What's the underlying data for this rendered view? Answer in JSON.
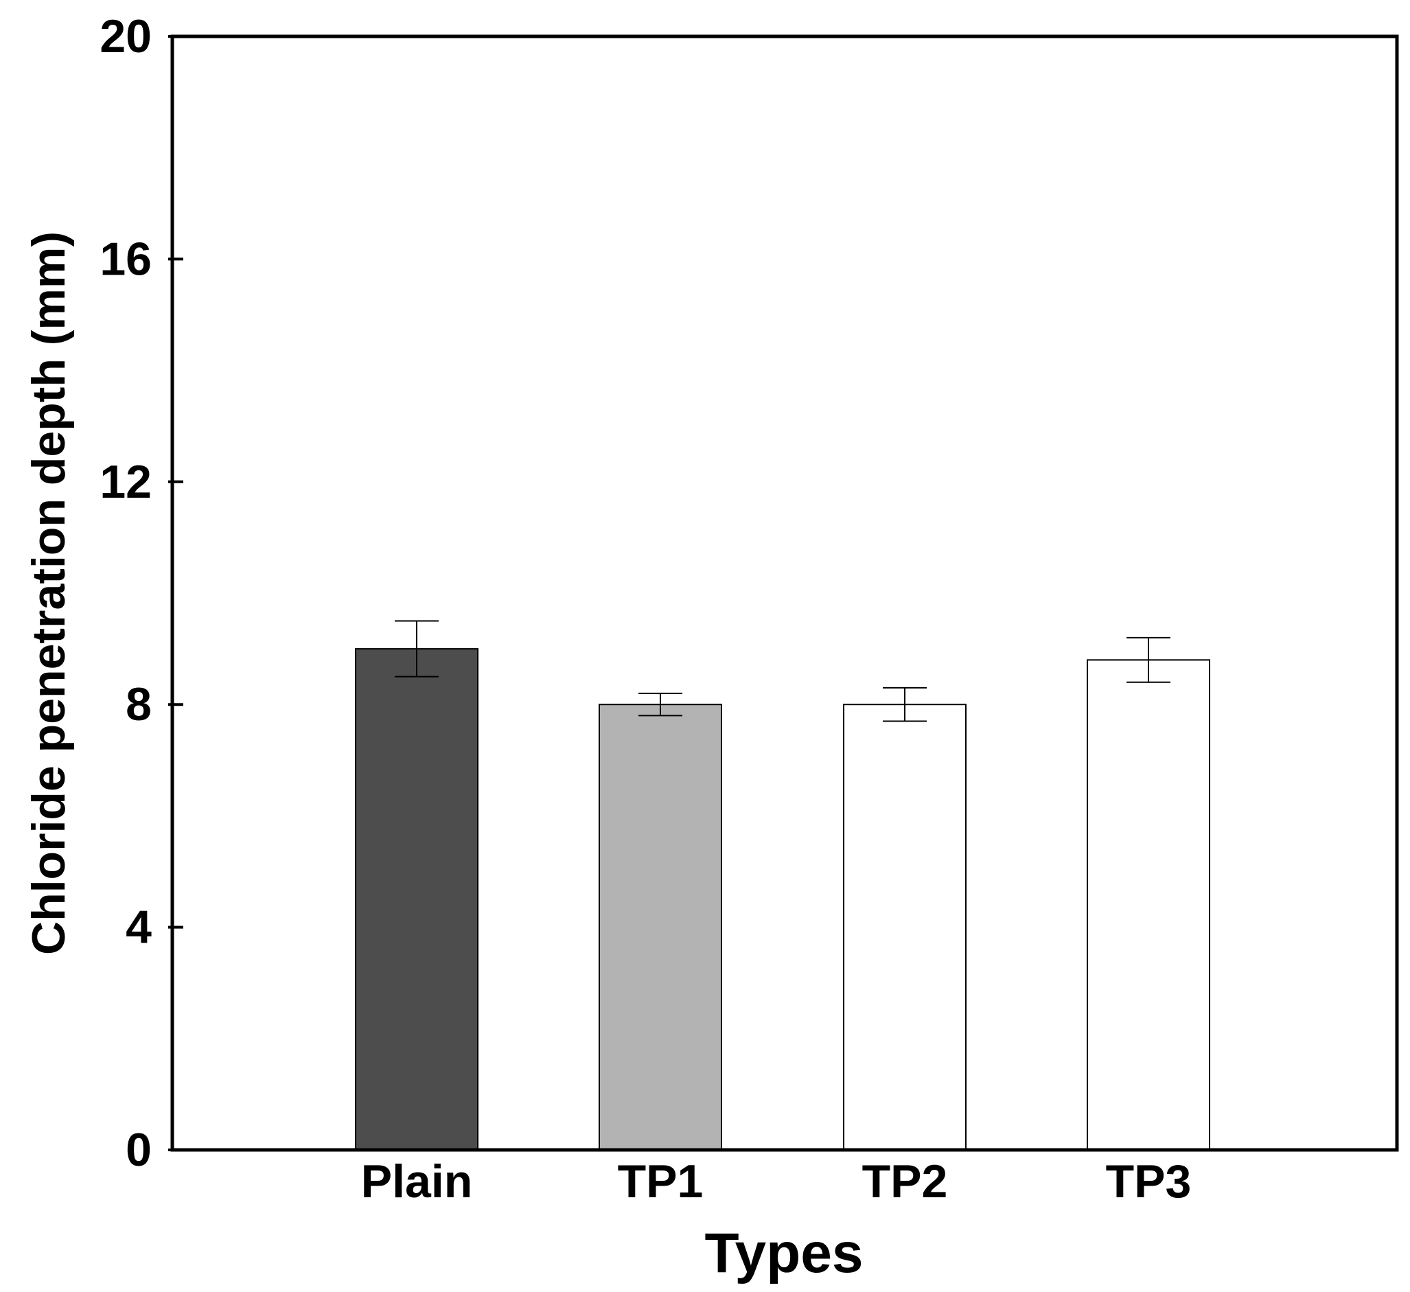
{
  "chart_data": {
    "type": "bar",
    "title": "",
    "xlabel": "Types",
    "ylabel": "Chloride penetration depth (mm)",
    "categories": [
      "Plain",
      "TP1",
      "TP2",
      "TP3"
    ],
    "values": [
      9.0,
      8.0,
      8.0,
      8.8
    ],
    "errors": [
      0.5,
      0.2,
      0.3,
      0.4
    ],
    "colors": [
      "#4d4d4d",
      "#b3b3b3",
      "#ffffff",
      "#ffffff"
    ],
    "ylim": [
      0,
      20
    ],
    "yticks": [
      "0",
      "4",
      "8",
      "12",
      "16",
      "20"
    ],
    "grid": false,
    "legend": "none"
  }
}
